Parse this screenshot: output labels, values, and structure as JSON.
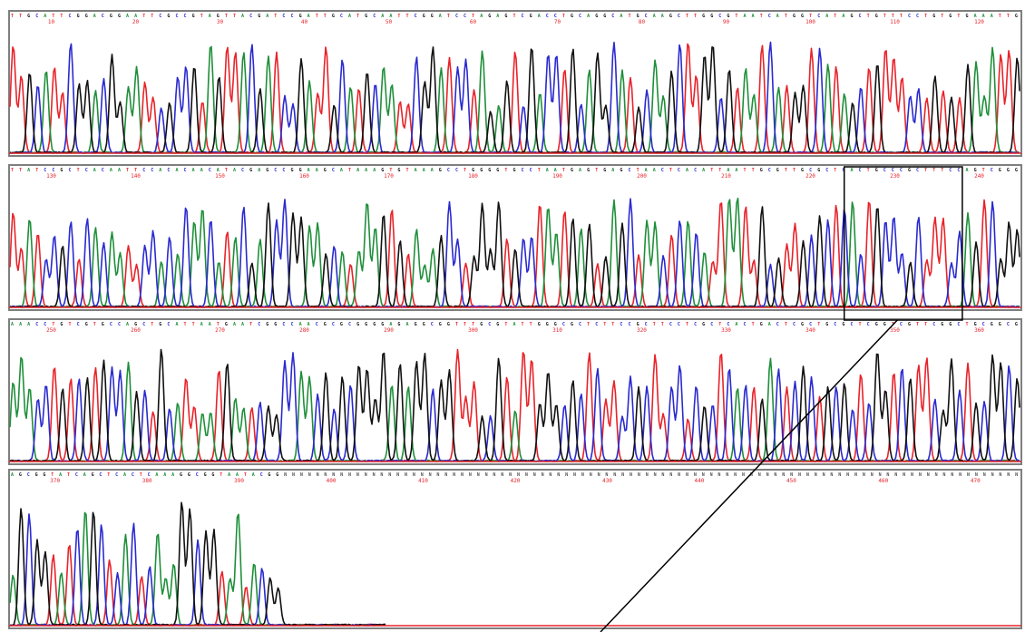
{
  "colors": {
    "A": "#1f8f3a",
    "C": "#2a2ad0",
    "G": "#111111",
    "T": "#e8232a",
    "panel_border": "#7f7f7f",
    "highlight_box": "#000000"
  },
  "chart_data": {
    "type": "line",
    "description_type": "dna-sequencing-chromatogram",
    "bases": [
      "A",
      "C",
      "G",
      "T"
    ],
    "grid": false,
    "rows": [
      {
        "ticks": [
          "10",
          "20",
          "30",
          "40",
          "50",
          "60",
          "70",
          "80",
          "90",
          "100",
          "110",
          "120"
        ],
        "pos_start": 5,
        "pos_end": 125,
        "sequence": "TTGCATTCGGACGGAATTCGCCGTAGTTACGATCCGATTGCATGCAATTCGGATCCTAGAGTCGACCTGCAGGCATGCAAGCTTGGCGTAATCATGGTCATAGCTGTTTCCTGTGTGAAATTG"
      },
      {
        "ticks": [
          "130",
          "140",
          "150",
          "160",
          "170",
          "180",
          "190",
          "200",
          "210",
          "220",
          "230",
          "240"
        ],
        "pos_start": 125,
        "pos_end": 245,
        "sequence": "TTATCCGCTCACAATTCCACACAACATACGAGCCGGAAGCATAAAGTGTAAAGCCTGGGGTGCCTAATGAGTGAGCTAACTCACATTAATTGCGTTGCGCTCACTGCCCGCTTTCCAGTCGGG"
      },
      {
        "ticks": [
          "250",
          "260",
          "270",
          "280",
          "290",
          "300",
          "310",
          "320",
          "330",
          "340",
          "350",
          "360"
        ],
        "pos_start": 245,
        "pos_end": 365,
        "sequence": "AAACCTGTCGTGCCAGCTGCATTAATGAATCGGCCAACGCGCGGGGAGAGGCGGTTTGCGTATTGGGCGCTCTTCCGCTTCCTCGCTCACTGACTCGCTGCGCTCGGTCGTTCGGCTGCGGCG"
      },
      {
        "ticks": [
          "370",
          "380",
          "390",
          "400",
          "410",
          "420",
          "430",
          "440",
          "450",
          "460",
          "470"
        ],
        "pos_start": 365,
        "pos_end": 475,
        "sequence": "AGCGGTATCAGCTCACTCAAAGGCGGTAATACGGNNNNNNNNNNNNNNNNNNNNNNNNNNNNNNNNNNNNNNNNNNNNNNNNNNNNNNNNNNNNNNNNNNNNNNNNNNNNNNNNNNNNNNNNNNNN",
        "signal_end_position": 405
      }
    ],
    "highlight": {
      "row": 1,
      "from_position": 224,
      "to_position": 238
    },
    "callout_line": {
      "from_row": 1,
      "to": "bottom-edge"
    }
  }
}
